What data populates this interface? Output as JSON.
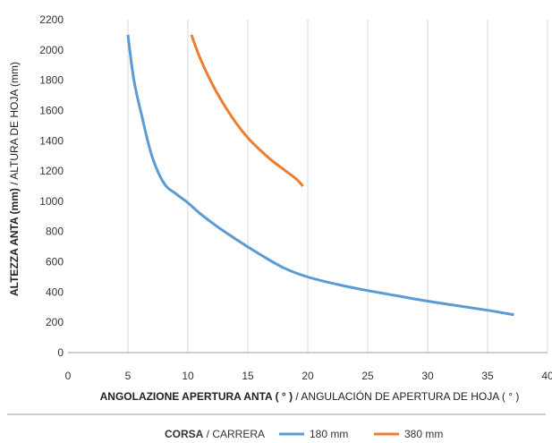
{
  "chart_data": {
    "type": "line",
    "title": "",
    "xlabel_bold": "ANGOLAZIONE APERTURA ANTA ( ° )",
    "xlabel_rest": " / ANGULACIÓN DE APERTURA DE HOJA ( ° )",
    "ylabel_bold": "ALTEZZA ANTA (mm)",
    "ylabel_rest": " / ALTURA DE HOJA (mm)",
    "xlim": [
      0,
      40
    ],
    "ylim": [
      0,
      2200
    ],
    "xticks": [
      0,
      5,
      10,
      15,
      20,
      25,
      30,
      35,
      40
    ],
    "yticks": [
      0,
      200,
      400,
      600,
      800,
      1000,
      1200,
      1400,
      1600,
      1800,
      2000,
      2200
    ],
    "grid": "vertical",
    "legend": {
      "placement": "bottom-center",
      "title_bold": "CORSA",
      "title_rest": " / CARRERA"
    },
    "series": [
      {
        "name": "180 mm",
        "color": "#5b9bd5",
        "points": [
          [
            5.0,
            2100
          ],
          [
            5.5,
            1800
          ],
          [
            6.2,
            1550
          ],
          [
            7.0,
            1300
          ],
          [
            8.0,
            1120
          ],
          [
            9.0,
            1050
          ],
          [
            10.0,
            990
          ],
          [
            11.0,
            920
          ],
          [
            12.5,
            830
          ],
          [
            14.0,
            750
          ],
          [
            16.0,
            650
          ],
          [
            18.0,
            560
          ],
          [
            20.0,
            500
          ],
          [
            22.5,
            450
          ],
          [
            25.0,
            410
          ],
          [
            27.5,
            375
          ],
          [
            30.0,
            340
          ],
          [
            32.5,
            310
          ],
          [
            35.0,
            280
          ],
          [
            37.2,
            250
          ]
        ]
      },
      {
        "name": "380 mm",
        "color": "#ed7d31",
        "points": [
          [
            10.3,
            2100
          ],
          [
            11.0,
            1950
          ],
          [
            12.0,
            1780
          ],
          [
            13.0,
            1640
          ],
          [
            14.0,
            1520
          ],
          [
            15.0,
            1420
          ],
          [
            16.0,
            1340
          ],
          [
            17.0,
            1270
          ],
          [
            18.0,
            1210
          ],
          [
            19.0,
            1150
          ],
          [
            19.6,
            1100
          ]
        ]
      }
    ]
  }
}
